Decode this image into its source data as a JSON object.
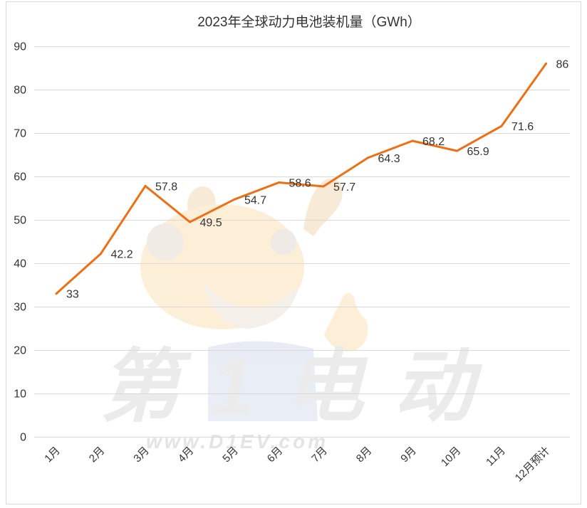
{
  "chart_data": {
    "type": "line",
    "title": "2023年全球动力电池装机量（GWh）",
    "xlabel": "",
    "ylabel": "",
    "categories": [
      "1月",
      "2月",
      "3月",
      "4月",
      "5月",
      "6月",
      "7月",
      "8月",
      "9月",
      "10月",
      "11月",
      "12月预计"
    ],
    "series": [
      {
        "values": [
          33,
          42.2,
          57.8,
          49.5,
          54.7,
          58.6,
          57.7,
          64.3,
          68.2,
          65.9,
          71.6,
          86
        ],
        "color": "#EF6F13",
        "data_labels": true
      }
    ],
    "ylim": [
      0,
      90
    ],
    "yticks": [
      0,
      10,
      20,
      30,
      40,
      50,
      60,
      70,
      80,
      90
    ],
    "grid": true,
    "legend": "none",
    "x_tick_rotation": "45 degrees"
  },
  "watermark": {
    "brand": "第1电动",
    "url": "www.D1EV.com"
  }
}
